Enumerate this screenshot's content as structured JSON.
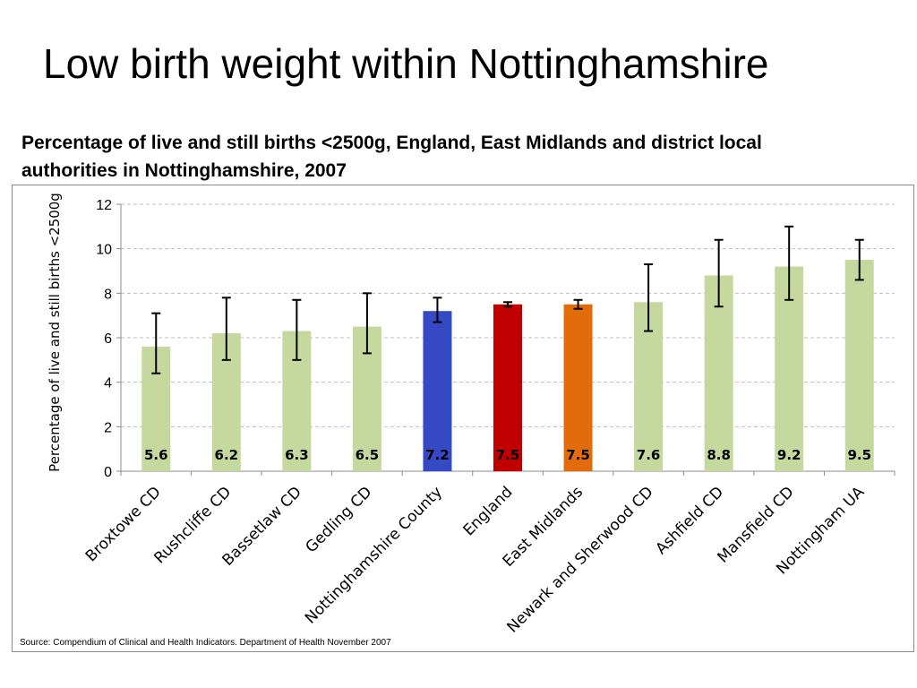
{
  "slide": {
    "title": "Low birth weight within Nottinghamshire"
  },
  "source": "Source: Compendium of Clinical and Health Indicators. Department of Health November 2007",
  "chart_data": {
    "type": "bar",
    "title": "Percentage of live and still births <2500g, England, East Midlands and district local authorities in Nottinghamshire, 2007",
    "xlabel": "",
    "ylabel": "Percentage of live and still births <2500g",
    "ylim": [
      0,
      12
    ],
    "yticks": [
      0,
      2,
      4,
      6,
      8,
      10,
      12
    ],
    "grid": true,
    "legend": "none",
    "error_bars": true,
    "categories": [
      "Broxtowe CD",
      "Rushcliffe CD",
      "Bassetlaw CD",
      "Gedling CD",
      "Nottinghamshire County",
      "England",
      "East Midlands",
      "Newark and Sherwood CD",
      "Ashfield CD",
      "Mansfield CD",
      "Nottingham UA"
    ],
    "values": [
      5.6,
      6.2,
      6.3,
      6.5,
      7.2,
      7.5,
      7.5,
      7.6,
      8.8,
      9.2,
      9.5
    ],
    "data_labels": [
      "5.6",
      "6.2",
      "6.3",
      "6.5",
      "7.2",
      "7.5",
      "7.5",
      "7.6",
      "8.8",
      "9.2",
      "9.5"
    ],
    "lower": [
      4.4,
      5.0,
      5.0,
      5.3,
      6.7,
      7.4,
      7.3,
      6.3,
      7.4,
      7.7,
      8.6
    ],
    "upper": [
      7.1,
      7.8,
      7.7,
      8.0,
      7.8,
      7.6,
      7.7,
      9.3,
      10.4,
      11.0,
      10.4
    ],
    "colors": [
      "#c5d99e",
      "#c5d99e",
      "#c5d99e",
      "#c5d99e",
      "#3649c4",
      "#c00000",
      "#e26b0a",
      "#c5d99e",
      "#c5d99e",
      "#c5d99e",
      "#c5d99e"
    ]
  }
}
